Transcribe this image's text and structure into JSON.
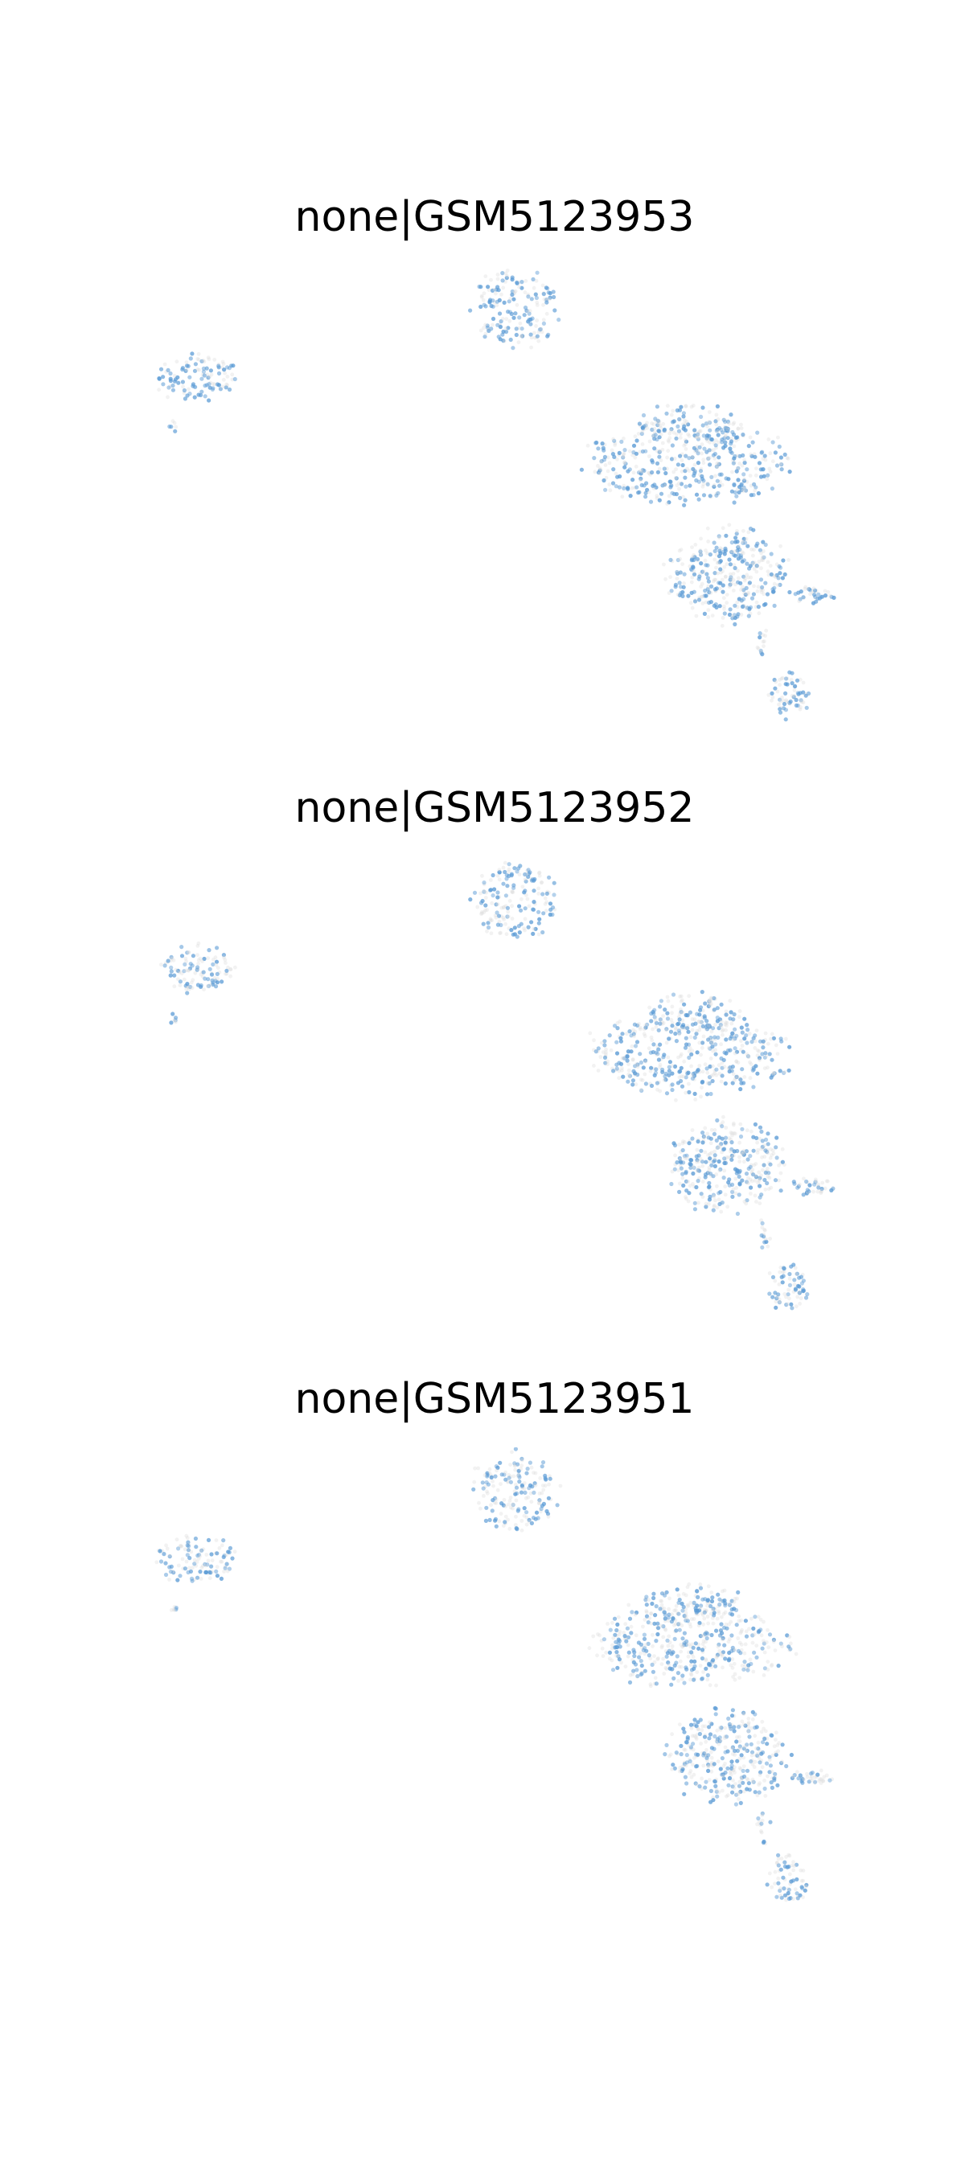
{
  "chart_data": [
    {
      "type": "scatter",
      "title": "none|GSM5123953",
      "xlabel": "",
      "ylabel": "",
      "axes_visible": false,
      "grid": false,
      "highlight_color": "#5b9bd5",
      "background_point_color": "#d9d9d9",
      "seed": 953,
      "highlight_fraction": 0.55
    },
    {
      "type": "scatter",
      "title": "none|GSM5123952",
      "xlabel": "",
      "ylabel": "",
      "axes_visible": false,
      "grid": false,
      "highlight_color": "#5b9bd5",
      "background_point_color": "#d9d9d9",
      "seed": 952,
      "highlight_fraction": 0.5
    },
    {
      "type": "scatter",
      "title": "none|GSM5123951",
      "xlabel": "",
      "ylabel": "",
      "axes_visible": false,
      "grid": false,
      "highlight_color": "#5b9bd5",
      "background_point_color": "#d9d9d9",
      "seed": 951,
      "highlight_fraction": 0.45
    }
  ]
}
